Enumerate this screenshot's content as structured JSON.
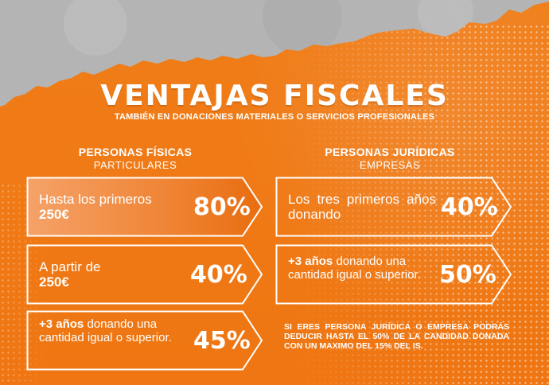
{
  "header": {
    "title": "VENTAJAS FISCALES",
    "subtitle": "TAMBIÉN EN DONACIONES MATERIALES O SERVICIOS PROFESIONALES"
  },
  "columns": [
    {
      "heading": "PERSONAS FÍSICAS",
      "subheading": "PARTICULARES",
      "items": [
        {
          "text": "Hasta los primeros",
          "text_bold": "250€",
          "percent": "80%"
        },
        {
          "text": "A partir de",
          "text_bold": "250€",
          "percent": "40%"
        },
        {
          "text_bold": "+3 años",
          "text": " donando una cantidad igual o superior.",
          "percent": "45%"
        }
      ]
    },
    {
      "heading": "PERSONAS JURÍDICAS",
      "subheading": "EMPRESAS",
      "items": [
        {
          "text": "Los tres primeros años donando",
          "percent": "40%"
        },
        {
          "text_bold": "+3 años",
          "text": " donando una cantidad igual o superior.",
          "percent": "50%"
        }
      ]
    }
  ],
  "note": "SI ERES PERSONA JURÍDICA O EMPRESA PODRÁS DEDUCIR HASTA EL 50% DE LA CANDIDAD DONADA CON UN MAXIMO DEL 15% DEL IS.",
  "colors": {
    "orange": "#f07a14",
    "concrete": "#b7b7b7",
    "white": "#ffffff"
  }
}
